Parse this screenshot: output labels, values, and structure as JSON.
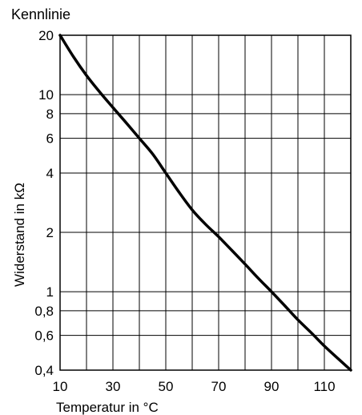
{
  "chart_data": {
    "type": "line",
    "title": "Kennlinie",
    "xlabel": "Temperatur in °C",
    "ylabel": "Widerstand in kΩ",
    "xlim": [
      10,
      120
    ],
    "ylim": [
      0.4,
      20
    ],
    "yscale": "log",
    "grid": true,
    "x_tick_labels": [
      "10",
      "30",
      "50",
      "70",
      "90",
      "110"
    ],
    "x_tick_values": [
      10,
      30,
      50,
      70,
      90,
      110
    ],
    "x_grid_values": [
      10,
      20,
      30,
      40,
      50,
      60,
      70,
      80,
      90,
      100,
      110,
      120
    ],
    "y_tick_labels": [
      "0,4",
      "0,6",
      "0,8",
      "1",
      "2",
      "4",
      "6",
      "8",
      "10",
      "20"
    ],
    "y_tick_values": [
      0.4,
      0.6,
      0.8,
      1,
      2,
      4,
      6,
      8,
      10,
      20
    ],
    "series": [
      {
        "x": [
          10,
          15,
          20,
          25,
          30,
          35,
          40,
          45,
          50,
          55,
          60,
          65,
          70,
          75,
          80,
          85,
          90,
          95,
          100,
          105,
          110,
          115,
          120
        ],
        "y": [
          20,
          15.6,
          12.5,
          10.3,
          8.6,
          7.2,
          6.0,
          5.0,
          4.0,
          3.2,
          2.6,
          2.2,
          1.9,
          1.62,
          1.38,
          1.17,
          1.0,
          0.85,
          0.72,
          0.62,
          0.53,
          0.46,
          0.4
        ]
      }
    ]
  }
}
